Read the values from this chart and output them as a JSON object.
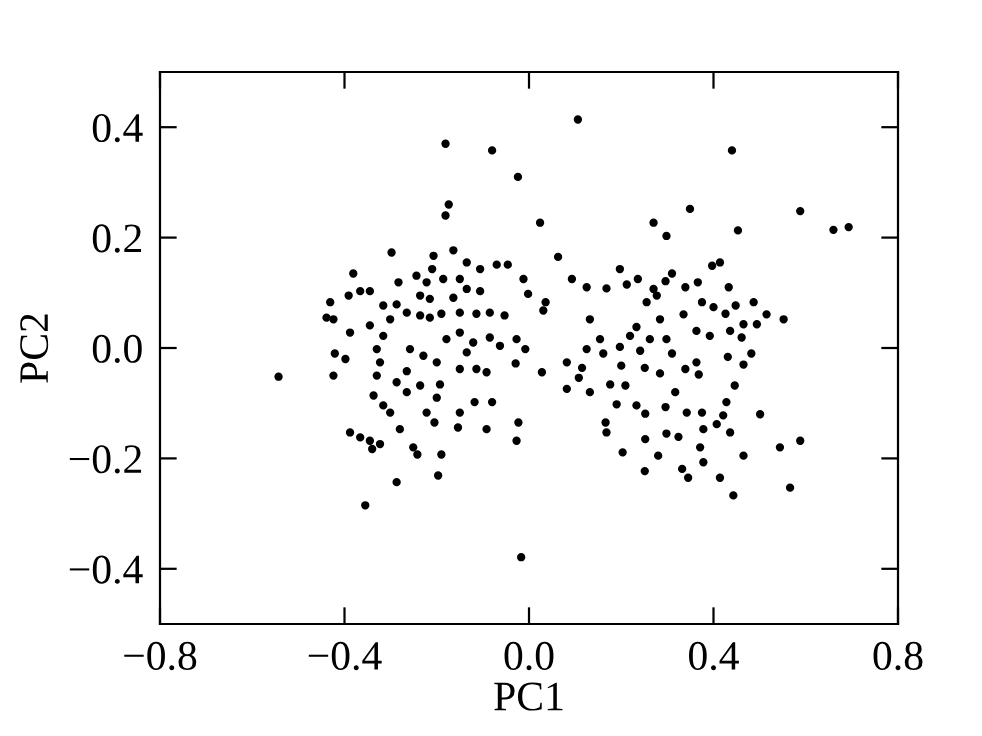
{
  "chart_data": {
    "type": "scatter",
    "xlabel": "PC1",
    "ylabel": "PC2",
    "xlim": [
      -0.8,
      0.8
    ],
    "ylim": [
      -0.5,
      0.5
    ],
    "xticks": [
      {
        "value": -0.8,
        "label": "−0.8"
      },
      {
        "value": -0.4,
        "label": "−0.4"
      },
      {
        "value": 0.0,
        "label": "0.0"
      },
      {
        "value": 0.4,
        "label": "0.4"
      },
      {
        "value": 0.8,
        "label": "0.8"
      }
    ],
    "yticks": [
      {
        "value": -0.4,
        "label": "−0.4"
      },
      {
        "value": -0.2,
        "label": "−0.2"
      },
      {
        "value": 0.0,
        "label": "0.0"
      },
      {
        "value": 0.2,
        "label": "0.2"
      },
      {
        "value": 0.4,
        "label": "0.4"
      }
    ],
    "grid": false,
    "marker": "circle",
    "series": [
      {
        "color": "#000000",
        "x": [
          -0.181,
          -0.08,
          -0.024,
          -0.174,
          -0.181,
          0.024,
          -0.298,
          -0.164,
          -0.207,
          -0.381,
          -0.07,
          -0.046,
          -0.106,
          -0.012,
          -0.002,
          -0.431,
          -0.439,
          -0.424,
          -0.391,
          -0.366,
          -0.345,
          -0.388,
          -0.421,
          -0.398,
          -0.424,
          -0.543,
          -0.388,
          -0.366,
          -0.345,
          -0.323,
          -0.34,
          -0.287,
          -0.355,
          -0.197,
          -0.19,
          -0.242,
          -0.251,
          -0.28,
          -0.205,
          -0.154,
          -0.092,
          -0.027,
          -0.023,
          -0.017,
          -0.08,
          -0.118,
          -0.15,
          -0.222,
          -0.301,
          -0.337,
          -0.316,
          -0.265,
          -0.236,
          -0.193,
          -0.2,
          -0.287,
          -0.33,
          -0.323,
          -0.33,
          -0.316,
          -0.301,
          -0.287,
          -0.265,
          -0.236,
          -0.258,
          -0.265,
          -0.229,
          -0.2,
          -0.179,
          -0.15,
          -0.121,
          -0.135,
          -0.15,
          -0.114,
          -0.092,
          -0.085,
          -0.063,
          -0.027,
          -0.008,
          -0.029,
          -0.053,
          -0.085,
          -0.114,
          -0.15,
          -0.19,
          -0.215,
          -0.164,
          -0.135,
          -0.106,
          -0.15,
          -0.186,
          -0.222,
          -0.244,
          -0.283,
          -0.316,
          -0.345,
          -0.215,
          -0.236,
          -0.135,
          -0.21,
          0.106,
          0.44,
          0.349,
          0.588,
          0.66,
          0.693,
          0.27,
          0.298,
          0.453,
          0.063,
          0.093,
          0.125,
          0.168,
          0.197,
          0.212,
          0.236,
          0.27,
          0.296,
          0.31,
          0.339,
          0.366,
          0.397,
          0.414,
          0.433,
          0.036,
          0.031,
          0.132,
          0.255,
          0.277,
          0.375,
          0.4,
          0.448,
          0.487,
          0.515,
          0.552,
          0.494,
          0.465,
          0.426,
          0.335,
          0.284,
          0.233,
          0.219,
          0.154,
          0.197,
          0.241,
          0.262,
          0.298,
          0.31,
          0.363,
          0.392,
          0.436,
          0.461,
          0.431,
          0.482,
          0.465,
          0.125,
          0.082,
          0.115,
          0.161,
          0.2,
          0.251,
          0.284,
          0.339,
          0.368,
          0.363,
          0.028,
          0.108,
          0.082,
          0.132,
          0.176,
          0.209,
          0.317,
          0.446,
          0.19,
          0.233,
          0.252,
          0.296,
          0.342,
          0.375,
          0.428,
          0.501,
          0.421,
          0.407,
          0.436,
          0.378,
          0.166,
          0.168,
          0.252,
          0.298,
          0.324,
          0.371,
          0.465,
          0.544,
          0.588,
          0.203,
          0.28,
          0.378,
          0.251,
          0.332,
          0.345,
          0.414,
          0.443,
          0.566
        ],
        "values": [
          0.37,
          0.358,
          0.31,
          0.26,
          0.24,
          0.227,
          0.173,
          0.177,
          0.167,
          0.135,
          0.151,
          0.151,
          0.143,
          0.125,
          0.098,
          0.083,
          0.055,
          0.052,
          0.095,
          0.103,
          0.103,
          0.028,
          -0.01,
          -0.02,
          -0.05,
          -0.052,
          -0.153,
          -0.162,
          -0.168,
          -0.174,
          -0.183,
          -0.243,
          -0.285,
          -0.231,
          -0.193,
          -0.193,
          -0.18,
          -0.147,
          -0.135,
          -0.144,
          -0.147,
          -0.168,
          -0.135,
          -0.379,
          -0.098,
          -0.098,
          -0.117,
          -0.117,
          -0.117,
          -0.086,
          -0.104,
          -0.08,
          -0.068,
          -0.066,
          -0.09,
          -0.062,
          -0.05,
          -0.026,
          -0.002,
          0.022,
          0.052,
          0.079,
          0.064,
          0.059,
          -0.002,
          -0.042,
          -0.014,
          -0.026,
          0.016,
          0.028,
          0.01,
          -0.008,
          -0.038,
          -0.038,
          -0.044,
          0.019,
          0.004,
          0.016,
          -0.002,
          -0.028,
          0.059,
          0.064,
          0.062,
          0.064,
          0.062,
          0.055,
          0.091,
          0.107,
          0.103,
          0.125,
          0.125,
          0.119,
          0.131,
          0.119,
          0.077,
          0.041,
          0.089,
          0.095,
          0.155,
          0.143,
          0.414,
          0.358,
          0.252,
          0.248,
          0.214,
          0.219,
          0.227,
          0.203,
          0.213,
          0.165,
          0.125,
          0.11,
          0.108,
          0.143,
          0.115,
          0.125,
          0.107,
          0.121,
          0.135,
          0.11,
          0.119,
          0.149,
          0.155,
          0.11,
          0.083,
          0.068,
          0.052,
          0.083,
          0.095,
          0.083,
          0.074,
          0.077,
          0.083,
          0.061,
          0.052,
          0.043,
          0.043,
          0.062,
          0.061,
          0.052,
          0.038,
          0.022,
          0.016,
          0.002,
          -0.005,
          0.016,
          0.016,
          -0.01,
          0.031,
          0.022,
          0.031,
          0.019,
          -0.016,
          -0.01,
          -0.03,
          -0.002,
          -0.026,
          -0.036,
          -0.01,
          -0.032,
          -0.036,
          -0.046,
          -0.038,
          -0.048,
          -0.026,
          -0.044,
          -0.054,
          -0.074,
          -0.08,
          -0.066,
          -0.068,
          -0.08,
          -0.068,
          -0.102,
          -0.104,
          -0.119,
          -0.107,
          -0.117,
          -0.117,
          -0.098,
          -0.12,
          -0.122,
          -0.138,
          -0.153,
          -0.147,
          -0.135,
          -0.153,
          -0.165,
          -0.155,
          -0.161,
          -0.18,
          -0.195,
          -0.18,
          -0.168,
          -0.189,
          -0.195,
          -0.207,
          -0.223,
          -0.219,
          -0.235,
          -0.235,
          -0.267,
          -0.253
        ]
      }
    ]
  }
}
